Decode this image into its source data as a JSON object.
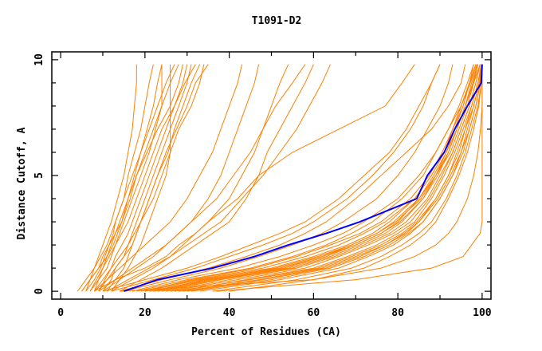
{
  "chart_data": {
    "type": "line",
    "title": "T1091-D2",
    "xlabel": "Percent of Residues (CA)",
    "ylabel": "Distance Cutoff, A",
    "xlim": [
      -2.1,
      102.1
    ],
    "ylim": [
      -0.34,
      10.34
    ],
    "x_ticks": [
      0,
      20,
      40,
      60,
      80,
      100
    ],
    "y_ticks": [
      0,
      5,
      10
    ],
    "grid": false,
    "colors": {
      "models": "#ff8000",
      "highlight": "#0000ff",
      "axes": "#000000"
    },
    "y": [
      0,
      0.5,
      1,
      1.5,
      2,
      2.5,
      3,
      4,
      5,
      6,
      7,
      8,
      9,
      9.8
    ],
    "highlight": {
      "x": [
        15,
        23,
        36,
        46,
        54,
        63,
        71,
        84.5,
        87,
        91,
        93.5,
        96.5,
        99.8,
        100
      ]
    },
    "series": [
      {
        "x": [
          20,
          33,
          50,
          60,
          68,
          74,
          78,
          84,
          88,
          91,
          93,
          95,
          97,
          98.5
        ]
      },
      {
        "x": [
          22,
          36,
          53,
          62,
          70,
          76,
          80,
          85,
          89,
          92,
          94,
          96,
          97.5,
          99
        ]
      },
      {
        "x": [
          25,
          40,
          56,
          65,
          72,
          78,
          82,
          87,
          90,
          93,
          95,
          97,
          98.5,
          99.5
        ]
      },
      {
        "x": [
          28,
          44,
          60,
          68,
          75,
          80,
          84,
          88,
          91,
          93.5,
          95.5,
          97.5,
          99,
          99.8
        ]
      },
      {
        "x": [
          18,
          30,
          45,
          55,
          63,
          69,
          74,
          81,
          86,
          89,
          92,
          94.5,
          96.5,
          98
        ]
      },
      {
        "x": [
          30,
          48,
          63,
          71,
          77,
          82,
          85,
          89,
          92,
          94.5,
          96,
          98,
          99.3,
          100
        ]
      },
      {
        "x": [
          24,
          38,
          55,
          64,
          71,
          77,
          81,
          86,
          89.5,
          92,
          94,
          96,
          98,
          99
        ]
      },
      {
        "x": [
          33,
          52,
          66,
          73,
          79,
          83,
          86,
          90,
          93,
          95,
          97,
          98.5,
          99.5,
          100
        ]
      },
      {
        "x": [
          21,
          35,
          51,
          61,
          69,
          75,
          79,
          85,
          88.5,
          91.5,
          93.5,
          95.5,
          97,
          98
        ]
      },
      {
        "x": [
          26,
          42,
          58,
          66,
          73,
          79,
          83,
          87.5,
          90.5,
          93,
          95,
          97,
          98.5,
          99.5
        ]
      },
      {
        "x": [
          36,
          56,
          69,
          76,
          81,
          85,
          88,
          91.5,
          94,
          96,
          97.5,
          99,
          99.8,
          100
        ]
      },
      {
        "x": [
          19,
          32,
          48,
          58,
          66,
          72,
          77,
          84,
          88,
          91,
          93,
          95.5,
          97,
          98.5
        ]
      },
      {
        "x": [
          27,
          45,
          61,
          69,
          76,
          81,
          84.5,
          89,
          92,
          94,
          96,
          97.5,
          99,
          100
        ]
      },
      {
        "x": [
          23,
          37,
          54,
          63,
          70,
          76,
          80.5,
          86,
          89,
          92.5,
          94.5,
          96.5,
          98,
          99.5
        ]
      },
      {
        "x": [
          40,
          60,
          72,
          78,
          83,
          86.5,
          89,
          92,
          94.5,
          96.5,
          98,
          99.2,
          99.8,
          100
        ]
      },
      {
        "x": [
          17,
          28,
          42,
          52,
          60,
          67,
          72,
          80,
          85,
          89,
          92,
          95,
          97,
          98.5
        ]
      },
      {
        "x": [
          29,
          47,
          62,
          70,
          77,
          81.5,
          85,
          89.5,
          92.5,
          95,
          96.5,
          98,
          99.3,
          100
        ]
      },
      {
        "x": [
          22,
          34,
          52,
          62,
          69,
          75,
          79.5,
          85.5,
          89,
          91.5,
          94,
          96,
          97.8,
          99
        ]
      },
      {
        "x": [
          31,
          50,
          64,
          72,
          78,
          82.5,
          86,
          90,
          93,
          95.5,
          97,
          98.5,
          99.6,
          100
        ]
      },
      {
        "x": [
          20,
          31,
          46,
          56,
          64,
          71,
          76,
          83,
          87.5,
          90.5,
          93,
          95,
          97.2,
          98.8
        ]
      },
      {
        "x": [
          12,
          22,
          32,
          40,
          48,
          55,
          60,
          68,
          74,
          79,
          83,
          86,
          88,
          90
        ]
      },
      {
        "x": [
          15,
          26,
          38,
          47,
          55,
          62,
          67,
          75,
          80,
          84,
          87,
          90,
          92,
          93
        ]
      },
      {
        "x": [
          14,
          24,
          35,
          44,
          52,
          58,
          63,
          70,
          76,
          82,
          88,
          92,
          95,
          96
        ]
      },
      {
        "x": [
          10,
          20,
          30,
          38,
          45,
          52,
          58,
          66,
          72,
          78,
          82,
          85,
          88,
          90
        ]
      },
      {
        "x": [
          37,
          70,
          88,
          95.5,
          97.5,
          99.5,
          100,
          100,
          100,
          100,
          100,
          100,
          100,
          100
        ]
      },
      {
        "x": [
          14,
          60,
          76,
          84,
          89,
          92,
          94,
          96.5,
          98,
          99,
          99.6,
          100,
          100,
          100
        ]
      },
      {
        "x": [
          5,
          7,
          8,
          9,
          10,
          11,
          12,
          13.5,
          15,
          16,
          17,
          17.5,
          18,
          18
        ]
      },
      {
        "x": [
          6,
          8,
          9.5,
          10.5,
          11.5,
          12.5,
          13,
          15,
          16,
          17.5,
          19,
          20,
          21,
          22
        ]
      },
      {
        "x": [
          7,
          9,
          10,
          11,
          12.5,
          13.5,
          14.5,
          16,
          17.5,
          19,
          20.5,
          22,
          23,
          24
        ]
      },
      {
        "x": [
          8,
          9,
          11,
          12,
          13,
          14,
          15,
          17,
          19,
          21,
          22.5,
          24,
          24,
          24
        ]
      },
      {
        "x": [
          6,
          7,
          9,
          10,
          11.5,
          13,
          14,
          16,
          18,
          20.5,
          23,
          26,
          28,
          29
        ]
      },
      {
        "x": [
          9,
          10.5,
          12,
          13,
          14.5,
          16,
          17,
          19,
          21,
          23,
          25,
          27,
          29,
          30
        ]
      },
      {
        "x": [
          4,
          6,
          8,
          9.5,
          11,
          12,
          13,
          15,
          17,
          19,
          21,
          23,
          25,
          27
        ]
      },
      {
        "x": [
          10,
          12,
          13,
          15,
          16,
          17,
          18,
          20,
          22,
          24,
          26,
          28,
          30,
          31
        ]
      },
      {
        "x": [
          7,
          8.5,
          10,
          11.5,
          13,
          14.5,
          16,
          18,
          20,
          22,
          24,
          27,
          29.5,
          32
        ]
      },
      {
        "x": [
          11,
          13,
          15,
          16,
          17,
          18,
          19,
          21,
          23,
          25.5,
          27,
          29,
          31,
          33
        ]
      },
      {
        "x": [
          8,
          10,
          12,
          14,
          16,
          17.5,
          19,
          21,
          23,
          25,
          27.5,
          30,
          32,
          35
        ]
      },
      {
        "x": [
          12,
          14,
          16,
          17.5,
          19,
          20,
          21,
          23,
          25,
          26,
          26,
          26,
          26,
          26
        ]
      },
      {
        "x": [
          9,
          11,
          13,
          15,
          17,
          18,
          19,
          22,
          24,
          26,
          28,
          31,
          33,
          34
        ]
      },
      {
        "x": [
          5,
          7,
          9,
          11,
          12,
          13,
          14.5,
          16.5,
          18,
          20,
          22,
          24,
          26,
          28
        ]
      },
      {
        "x": [
          8,
          11,
          14,
          17,
          20,
          23,
          26,
          30,
          33,
          36,
          38,
          40,
          42,
          43
        ]
      },
      {
        "x": [
          10,
          14,
          18,
          22,
          25,
          28,
          31,
          35,
          38,
          40,
          42,
          44,
          46,
          47
        ]
      },
      {
        "x": [
          12,
          17,
          22,
          26,
          29,
          32,
          35,
          40,
          43,
          46,
          48,
          50,
          52,
          54
        ]
      },
      {
        "x": [
          9,
          13,
          17,
          21,
          25,
          28,
          31,
          37,
          41,
          45,
          48,
          51,
          55,
          58
        ]
      },
      {
        "x": [
          14,
          19,
          24,
          28,
          32,
          36,
          40,
          44,
          47,
          49,
          52,
          55,
          58,
          60
        ]
      },
      {
        "x": [
          8,
          13,
          20,
          25,
          28,
          32,
          35,
          42,
          47,
          55,
          66,
          77,
          81,
          84
        ]
      },
      {
        "x": [
          11,
          16,
          21,
          26,
          30,
          34,
          38,
          43,
          48,
          52,
          56,
          59,
          62,
          64
        ]
      }
    ]
  }
}
